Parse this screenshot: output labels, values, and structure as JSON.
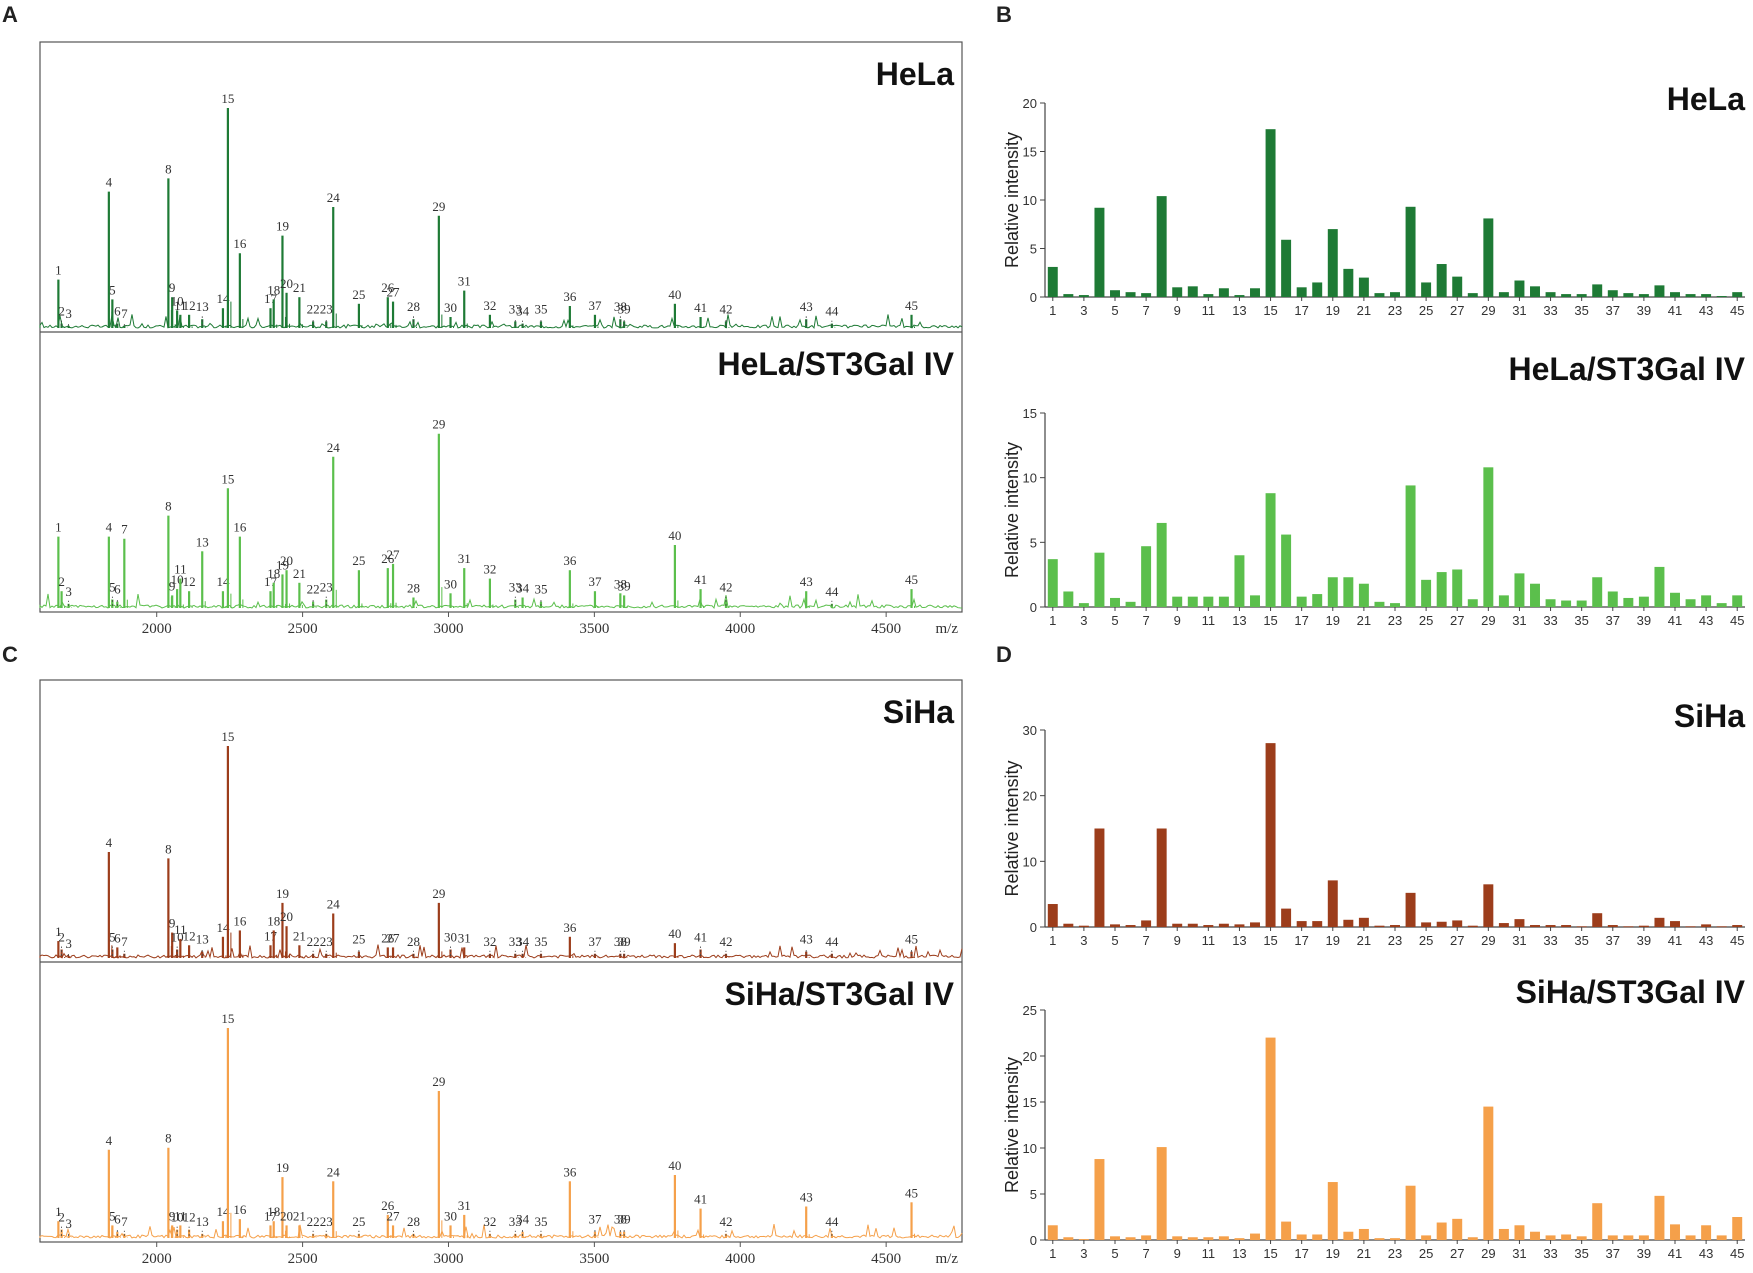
{
  "panels": {
    "a": "A",
    "b": "B",
    "c": "C",
    "d": "D"
  },
  "colors": {
    "hela": "#1e7a35",
    "hela_st3": "#5bbf4c",
    "siha": "#9c3d1b",
    "siha_st3": "#f5a04a"
  },
  "spectrum_axis": {
    "ticks": [
      2000,
      2500,
      3000,
      3500,
      4000,
      4500
    ],
    "unit": "m/z",
    "range": [
      1600,
      4760
    ]
  },
  "peak_mz": [
    1663,
    1674,
    1698,
    1836,
    1848,
    1865,
    1889,
    2040,
    2053,
    2070,
    2081,
    2111,
    2156,
    2227,
    2244,
    2285,
    2390,
    2401,
    2431,
    2445,
    2489,
    2536,
    2581,
    2605,
    2693,
    2792,
    2810,
    2880,
    2967,
    3007,
    3054,
    3142,
    3229,
    3254,
    3317,
    3416,
    3502,
    3589,
    3602,
    3776,
    3864,
    3951,
    4226,
    4314,
    4587
  ],
  "chart_data": [
    {
      "type": "line",
      "subtype": "mass-spectrum",
      "panel": "A",
      "title": "HeLa",
      "xlabel": "m/z",
      "xlim": [
        1600,
        4760
      ],
      "peak_labels": [
        "1",
        "2",
        "3",
        "4",
        "5",
        "6",
        "7",
        "8",
        "9",
        "10",
        "11",
        "12",
        "13",
        "14",
        "15",
        "16",
        "17",
        "18",
        "19",
        "20",
        "21",
        "22",
        "23",
        "24",
        "25",
        "26",
        "27",
        "28",
        "29",
        "30",
        "31",
        "32",
        "33",
        "34",
        "35",
        "36",
        "37",
        "38",
        "39",
        "40",
        "41",
        "42",
        "43",
        "44",
        "45"
      ],
      "peak_heights": [
        0.22,
        0.02,
        0.01,
        0.62,
        0.13,
        0.02,
        0.01,
        0.68,
        0.14,
        0.08,
        0.06,
        0.06,
        0.04,
        0.09,
        1.0,
        0.34,
        0.09,
        0.13,
        0.42,
        0.16,
        0.14,
        0.03,
        0.03,
        0.55,
        0.11,
        0.14,
        0.12,
        0.04,
        0.51,
        0.05,
        0.17,
        0.06,
        0.03,
        0.02,
        0.03,
        0.1,
        0.06,
        0.04,
        0.03,
        0.11,
        0.05,
        0.03,
        0.04,
        0.02,
        0.06
      ]
    },
    {
      "type": "line",
      "subtype": "mass-spectrum",
      "panel": "A",
      "title": "HeLa/ST3Gal IV",
      "xlabel": "m/z",
      "xlim": [
        1600,
        4760
      ],
      "peak_labels": [
        "1",
        "2",
        "3",
        "4",
        "5",
        "6",
        "7",
        "8",
        "9",
        "10",
        "11",
        "12",
        "13",
        "14",
        "15",
        "16",
        "17",
        "18",
        "19",
        "20",
        "21",
        "22",
        "23",
        "24",
        "25",
        "26",
        "27",
        "28",
        "29",
        "30",
        "31",
        "32",
        "33",
        "34",
        "35",
        "36",
        "37",
        "38",
        "39",
        "40",
        "41",
        "42",
        "43",
        "44",
        "45"
      ],
      "peak_heights": [
        0.34,
        0.08,
        0.02,
        0.34,
        0.04,
        0.03,
        0.33,
        0.44,
        0.06,
        0.09,
        0.14,
        0.08,
        0.27,
        0.08,
        0.57,
        0.34,
        0.08,
        0.12,
        0.16,
        0.18,
        0.12,
        0.03,
        0.04,
        0.72,
        0.18,
        0.19,
        0.21,
        0.05,
        0.83,
        0.07,
        0.19,
        0.14,
        0.04,
        0.05,
        0.03,
        0.18,
        0.08,
        0.07,
        0.06,
        0.3,
        0.09,
        0.04,
        0.08,
        0.02,
        0.09
      ]
    },
    {
      "type": "line",
      "subtype": "mass-spectrum",
      "panel": "C",
      "title": "SiHa",
      "xlabel": "m/z",
      "xlim": [
        1600,
        4760
      ],
      "peak_labels": [
        "1",
        "2",
        "3",
        "4",
        "5",
        "6",
        "7",
        "8",
        "9",
        "10",
        "11",
        "12",
        "13",
        "14",
        "15",
        "16",
        "17",
        "18",
        "19",
        "20",
        "21",
        "22",
        "23",
        "24",
        "25",
        "26",
        "27",
        "28",
        "29",
        "30",
        "31",
        "32",
        "33",
        "34",
        "35",
        "36",
        "37",
        "38",
        "39",
        "40",
        "41",
        "42",
        "43",
        "44",
        "45"
      ],
      "peak_heights": [
        0.08,
        0.04,
        0.01,
        0.5,
        0.04,
        0.05,
        0.02,
        0.47,
        0.12,
        0.04,
        0.09,
        0.06,
        0.03,
        0.1,
        1.0,
        0.13,
        0.06,
        0.13,
        0.26,
        0.15,
        0.06,
        0.02,
        0.02,
        0.21,
        0.03,
        0.05,
        0.05,
        0.02,
        0.26,
        0.04,
        0.05,
        0.02,
        0.02,
        0.02,
        0.02,
        0.1,
        0.02,
        0.02,
        0.02,
        0.07,
        0.04,
        0.02,
        0.03,
        0.02,
        0.03
      ]
    },
    {
      "type": "line",
      "subtype": "mass-spectrum",
      "panel": "C",
      "title": "SiHa/ST3Gal IV",
      "xlabel": "m/z",
      "xlim": [
        1600,
        4760
      ],
      "peak_labels": [
        "1",
        "2",
        "3",
        "4",
        "5",
        "6",
        "7",
        "8",
        "9",
        "10",
        "11",
        "12",
        "13",
        "14",
        "15",
        "16",
        "17",
        "18",
        "19",
        "20",
        "21",
        "22",
        "23",
        "24",
        "25",
        "26",
        "27",
        "28",
        "29",
        "30",
        "31",
        "32",
        "33",
        "34",
        "35",
        "36",
        "37",
        "38",
        "39",
        "40",
        "41",
        "42",
        "43",
        "44",
        "45"
      ],
      "peak_heights": [
        0.08,
        0.04,
        0.01,
        0.42,
        0.06,
        0.03,
        0.02,
        0.43,
        0.06,
        0.04,
        0.06,
        0.04,
        0.02,
        0.08,
        1.0,
        0.09,
        0.06,
        0.08,
        0.29,
        0.06,
        0.06,
        0.02,
        0.02,
        0.27,
        0.02,
        0.11,
        0.06,
        0.02,
        0.7,
        0.06,
        0.11,
        0.02,
        0.02,
        0.03,
        0.02,
        0.27,
        0.03,
        0.03,
        0.03,
        0.3,
        0.14,
        0.02,
        0.15,
        0.02,
        0.17
      ]
    },
    {
      "type": "bar",
      "panel": "B",
      "title": "HeLa",
      "ylabel": "Relative intensity",
      "ylim": [
        0,
        20
      ],
      "yticks": [
        0,
        5,
        10,
        15,
        20
      ],
      "categories": [
        1,
        2,
        3,
        4,
        5,
        6,
        7,
        8,
        9,
        10,
        11,
        12,
        13,
        14,
        15,
        16,
        17,
        18,
        19,
        20,
        21,
        22,
        23,
        24,
        25,
        26,
        27,
        28,
        29,
        30,
        31,
        32,
        33,
        34,
        35,
        36,
        37,
        38,
        39,
        40,
        41,
        42,
        43,
        44,
        45
      ],
      "xtick_labels": [
        "1",
        "3",
        "5",
        "7",
        "9",
        "11",
        "13",
        "15",
        "17",
        "19",
        "21",
        "23",
        "25",
        "27",
        "29",
        "31",
        "33",
        "35",
        "37",
        "39",
        "41",
        "43",
        "45"
      ],
      "values": [
        3.1,
        0.3,
        0.2,
        9.2,
        0.7,
        0.5,
        0.4,
        10.4,
        1.0,
        1.1,
        0.3,
        0.9,
        0.2,
        0.9,
        17.3,
        5.9,
        1.0,
        1.5,
        7.0,
        2.9,
        2.0,
        0.4,
        0.5,
        9.3,
        1.5,
        3.4,
        2.1,
        0.4,
        8.1,
        0.5,
        1.7,
        1.1,
        0.5,
        0.3,
        0.3,
        1.3,
        0.7,
        0.4,
        0.3,
        1.2,
        0.5,
        0.3,
        0.3,
        0.1,
        0.5
      ]
    },
    {
      "type": "bar",
      "panel": "B",
      "title": "HeLa/ST3Gal IV",
      "ylabel": "Relative intensity",
      "ylim": [
        0,
        15
      ],
      "yticks": [
        0,
        5,
        10,
        15
      ],
      "categories": [
        1,
        2,
        3,
        4,
        5,
        6,
        7,
        8,
        9,
        10,
        11,
        12,
        13,
        14,
        15,
        16,
        17,
        18,
        19,
        20,
        21,
        22,
        23,
        24,
        25,
        26,
        27,
        28,
        29,
        30,
        31,
        32,
        33,
        34,
        35,
        36,
        37,
        38,
        39,
        40,
        41,
        42,
        43,
        44,
        45
      ],
      "xtick_labels": [
        "1",
        "3",
        "5",
        "7",
        "9",
        "11",
        "13",
        "15",
        "17",
        "19",
        "21",
        "23",
        "25",
        "27",
        "29",
        "31",
        "33",
        "35",
        "37",
        "39",
        "41",
        "43",
        "45"
      ],
      "values": [
        3.7,
        1.2,
        0.3,
        4.2,
        0.7,
        0.4,
        4.7,
        6.5,
        0.8,
        0.8,
        0.8,
        0.8,
        4.0,
        0.9,
        8.8,
        5.6,
        0.8,
        1.0,
        2.3,
        2.3,
        1.8,
        0.4,
        0.3,
        9.4,
        2.1,
        2.7,
        2.9,
        0.6,
        10.8,
        0.9,
        2.6,
        1.8,
        0.6,
        0.5,
        0.5,
        2.3,
        1.2,
        0.7,
        0.8,
        3.1,
        1.1,
        0.6,
        0.9,
        0.3,
        0.9
      ]
    },
    {
      "type": "bar",
      "panel": "D",
      "title": "SiHa",
      "ylabel": "Relative intensity",
      "ylim": [
        0,
        30
      ],
      "yticks": [
        0,
        10,
        20,
        30
      ],
      "categories": [
        1,
        2,
        3,
        4,
        5,
        6,
        7,
        8,
        9,
        10,
        11,
        12,
        13,
        14,
        15,
        16,
        17,
        18,
        19,
        20,
        21,
        22,
        23,
        24,
        25,
        26,
        27,
        28,
        29,
        30,
        31,
        32,
        33,
        34,
        35,
        36,
        37,
        38,
        39,
        40,
        41,
        42,
        43,
        44,
        45
      ],
      "xtick_labels": [
        "1",
        "3",
        "5",
        "7",
        "9",
        "11",
        "13",
        "15",
        "17",
        "19",
        "21",
        "23",
        "25",
        "27",
        "29",
        "31",
        "33",
        "35",
        "37",
        "39",
        "41",
        "43",
        "45"
      ],
      "values": [
        3.5,
        0.5,
        0.2,
        15.0,
        0.4,
        0.3,
        1.0,
        15.0,
        0.5,
        0.5,
        0.3,
        0.5,
        0.4,
        0.7,
        28.0,
        2.8,
        0.9,
        0.9,
        7.1,
        1.1,
        1.4,
        0.2,
        0.3,
        5.2,
        0.7,
        0.8,
        1.0,
        0.2,
        6.5,
        0.6,
        1.2,
        0.3,
        0.3,
        0.3,
        0.1,
        2.1,
        0.3,
        0.1,
        0.2,
        1.4,
        0.9,
        0.1,
        0.4,
        0.1,
        0.3
      ]
    },
    {
      "type": "bar",
      "panel": "D",
      "title": "SiHa/ST3Gal IV",
      "ylabel": "Relative intensity",
      "ylim": [
        0,
        25
      ],
      "yticks": [
        0,
        5,
        10,
        15,
        20,
        25
      ],
      "categories": [
        1,
        2,
        3,
        4,
        5,
        6,
        7,
        8,
        9,
        10,
        11,
        12,
        13,
        14,
        15,
        16,
        17,
        18,
        19,
        20,
        21,
        22,
        23,
        24,
        25,
        26,
        27,
        28,
        29,
        30,
        31,
        32,
        33,
        34,
        35,
        36,
        37,
        38,
        39,
        40,
        41,
        42,
        43,
        44,
        45
      ],
      "xtick_labels": [
        "1",
        "3",
        "5",
        "7",
        "9",
        "11",
        "13",
        "15",
        "17",
        "19",
        "21",
        "23",
        "25",
        "27",
        "29",
        "31",
        "33",
        "35",
        "37",
        "39",
        "41",
        "43",
        "45"
      ],
      "values": [
        1.6,
        0.3,
        0.1,
        8.8,
        0.4,
        0.3,
        0.5,
        10.1,
        0.4,
        0.3,
        0.3,
        0.4,
        0.2,
        0.7,
        22.0,
        2.0,
        0.6,
        0.6,
        6.3,
        0.9,
        1.2,
        0.2,
        0.2,
        5.9,
        0.5,
        1.9,
        2.3,
        0.3,
        14.5,
        1.2,
        1.6,
        0.9,
        0.5,
        0.6,
        0.4,
        4.0,
        0.5,
        0.5,
        0.5,
        4.8,
        1.7,
        0.5,
        1.6,
        0.5,
        2.5
      ]
    }
  ]
}
